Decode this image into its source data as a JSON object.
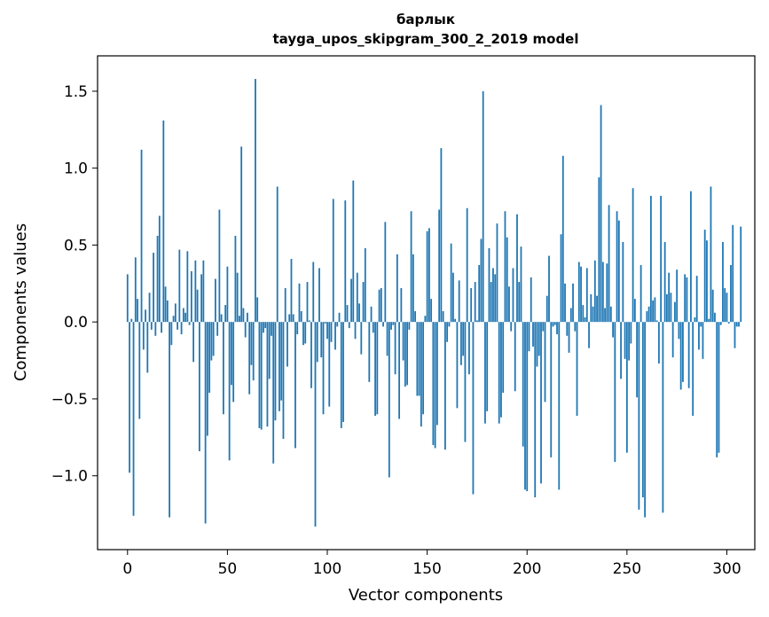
{
  "chart_data": {
    "type": "bar",
    "title": "барлык",
    "subtitle": "tayga_upos_skipgram_300_2_2019 model",
    "xlabel": "Vector components",
    "ylabel": "Components values",
    "xlim": [
      -15,
      314
    ],
    "ylim": [
      -1.48,
      1.73
    ],
    "xticks": [
      0,
      50,
      100,
      150,
      200,
      250,
      300
    ],
    "xtick_labels": [
      "0",
      "50",
      "100",
      "150",
      "200",
      "250",
      "300"
    ],
    "yticks": [
      -1.0,
      -0.5,
      0.0,
      0.5,
      1.0,
      1.5
    ],
    "ytick_labels": [
      "−1.0",
      "−0.5",
      "0.0",
      "0.5",
      "1.0",
      "1.5"
    ],
    "bar_color": "#1f77b4",
    "grid": false,
    "legend": "none",
    "values": [
      0.31,
      -0.98,
      0.02,
      -1.26,
      0.42,
      0.15,
      -0.63,
      1.12,
      -0.18,
      0.08,
      -0.33,
      0.19,
      -0.05,
      0.45,
      -0.09,
      0.56,
      0.69,
      -0.07,
      1.31,
      0.23,
      0.14,
      -1.27,
      -0.15,
      0.04,
      0.12,
      -0.05,
      0.47,
      -0.08,
      0.09,
      0.06,
      0.46,
      -0.02,
      0.33,
      -0.26,
      0.4,
      0.21,
      -0.84,
      0.31,
      0.4,
      -1.31,
      -0.74,
      -0.46,
      -0.25,
      -0.22,
      0.28,
      -0.09,
      0.73,
      0.05,
      -0.6,
      0.11,
      0.36,
      -0.9,
      -0.41,
      -0.52,
      0.56,
      0.32,
      0.04,
      1.14,
      0.09,
      -0.1,
      0.06,
      -0.47,
      -0.28,
      -0.38,
      1.58,
      0.16,
      -0.69,
      -0.7,
      -0.07,
      -0.04,
      -0.68,
      -0.37,
      -0.09,
      -0.92,
      -0.64,
      0.88,
      -0.58,
      -0.51,
      -0.76,
      0.22,
      -0.29,
      0.05,
      0.41,
      0.05,
      -0.82,
      -0.08,
      0.25,
      0.07,
      -0.15,
      -0.14,
      0.26,
      0.01,
      -0.43,
      0.39,
      -1.33,
      -0.26,
      0.35,
      -0.23,
      -0.6,
      -0.01,
      -0.11,
      -0.55,
      -0.13,
      0.8,
      -0.18,
      -0.03,
      0.06,
      -0.69,
      -0.65,
      0.79,
      0.11,
      -0.04,
      0.28,
      0.92,
      -0.11,
      0.32,
      0.12,
      -0.21,
      0.26,
      0.48,
      0.0,
      -0.39,
      0.1,
      -0.07,
      -0.61,
      -0.6,
      0.21,
      0.22,
      -0.03,
      0.65,
      -0.22,
      -1.01,
      -0.05,
      -0.02,
      -0.34,
      0.44,
      -0.63,
      0.22,
      -0.25,
      -0.42,
      -0.41,
      -0.05,
      0.72,
      0.44,
      0.07,
      -0.48,
      -0.48,
      -0.68,
      -0.6,
      0.04,
      0.59,
      0.61,
      0.15,
      -0.8,
      -0.82,
      -0.67,
      0.73,
      1.13,
      0.07,
      -0.83,
      -0.13,
      -0.03,
      0.51,
      0.32,
      0.02,
      -0.56,
      0.27,
      -0.28,
      -0.22,
      -0.78,
      0.74,
      -0.34,
      0.22,
      -1.12,
      0.26,
      0.01,
      0.37,
      0.54,
      1.5,
      -0.66,
      -0.58,
      0.48,
      0.26,
      0.35,
      0.31,
      0.64,
      -0.66,
      -0.62,
      -0.46,
      0.72,
      0.55,
      0.23,
      -0.06,
      0.35,
      -0.45,
      0.7,
      0.26,
      0.49,
      -0.81,
      -1.09,
      -1.1,
      -0.19,
      0.29,
      -0.16,
      -1.14,
      -0.29,
      -0.22,
      -1.05,
      -0.06,
      -0.52,
      0.17,
      0.43,
      -0.88,
      -0.03,
      -0.02,
      -0.08,
      -1.09,
      0.57,
      1.08,
      0.25,
      -0.09,
      -0.2,
      0.09,
      0.25,
      -0.06,
      -0.61,
      0.39,
      0.36,
      0.11,
      0.03,
      0.35,
      -0.17,
      0.18,
      0.1,
      0.4,
      0.17,
      0.94,
      1.41,
      0.39,
      0.09,
      0.38,
      0.76,
      0.1,
      -0.1,
      -0.91,
      0.72,
      0.66,
      -0.37,
      0.52,
      -0.24,
      -0.85,
      -0.25,
      -0.14,
      0.87,
      0.15,
      -0.49,
      -1.22,
      0.37,
      -1.14,
      -1.27,
      0.07,
      0.1,
      0.82,
      0.14,
      0.16,
      0.01,
      -0.27,
      0.82,
      -1.24,
      0.52,
      0.18,
      0.32,
      0.19,
      -0.23,
      0.13,
      0.34,
      -0.11,
      -0.44,
      -0.39,
      0.31,
      0.29,
      -0.43,
      0.85,
      -0.61,
      0.03,
      0.3,
      -0.18,
      -0.03,
      -0.24,
      0.6,
      0.53,
      0.02,
      0.88,
      0.21,
      0.06,
      -0.88,
      -0.85,
      -0.02,
      0.52,
      0.22,
      0.19,
      -0.01,
      0.37,
      0.63,
      -0.17,
      -0.03,
      -0.03,
      0.62
    ]
  }
}
